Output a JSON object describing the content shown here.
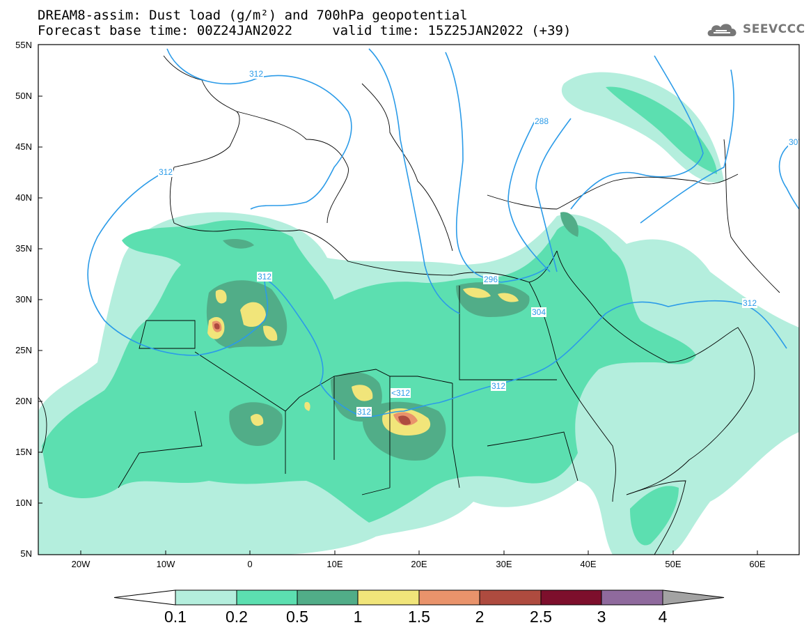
{
  "title": {
    "line1": "DREAM8-assim: Dust load (g/m²) and 700hPa geopotential",
    "line2": "Forecast base time: 00Z24JAN2022     valid time: 15Z25JAN2022 (+39)"
  },
  "logo": {
    "text": "SEEVCCC",
    "icon": "cloud-icon"
  },
  "map": {
    "lat_labels": [
      "55N",
      "50N",
      "45N",
      "40N",
      "35N",
      "30N",
      "25N",
      "20N",
      "15N",
      "10N",
      "5N"
    ],
    "lon_labels": [
      "20W",
      "10W",
      "0",
      "10E",
      "20E",
      "30E",
      "40E",
      "50E",
      "60E"
    ],
    "contour_labels": [
      "312",
      "312",
      "312",
      "288",
      "312",
      "296",
      "304",
      "312",
      "<312",
      "312",
      "30"
    ]
  },
  "colorbar": {
    "labels": [
      "0.1",
      "0.2",
      "0.5",
      "1",
      "1.5",
      "2",
      "2.5",
      "3",
      "4"
    ],
    "colors": {
      "c1": "#b4eedd",
      "c2": "#5cdfb0",
      "c3": "#51ad88",
      "c4": "#f1e57a",
      "c5": "#e9936b",
      "c6": "#ae4b3f",
      "c7": "#7d0f2c",
      "c8": "#8f6a9d",
      "c9": "#a3a3a3"
    }
  },
  "colors": {
    "contour": "#2b9be8",
    "border": "#000000"
  }
}
